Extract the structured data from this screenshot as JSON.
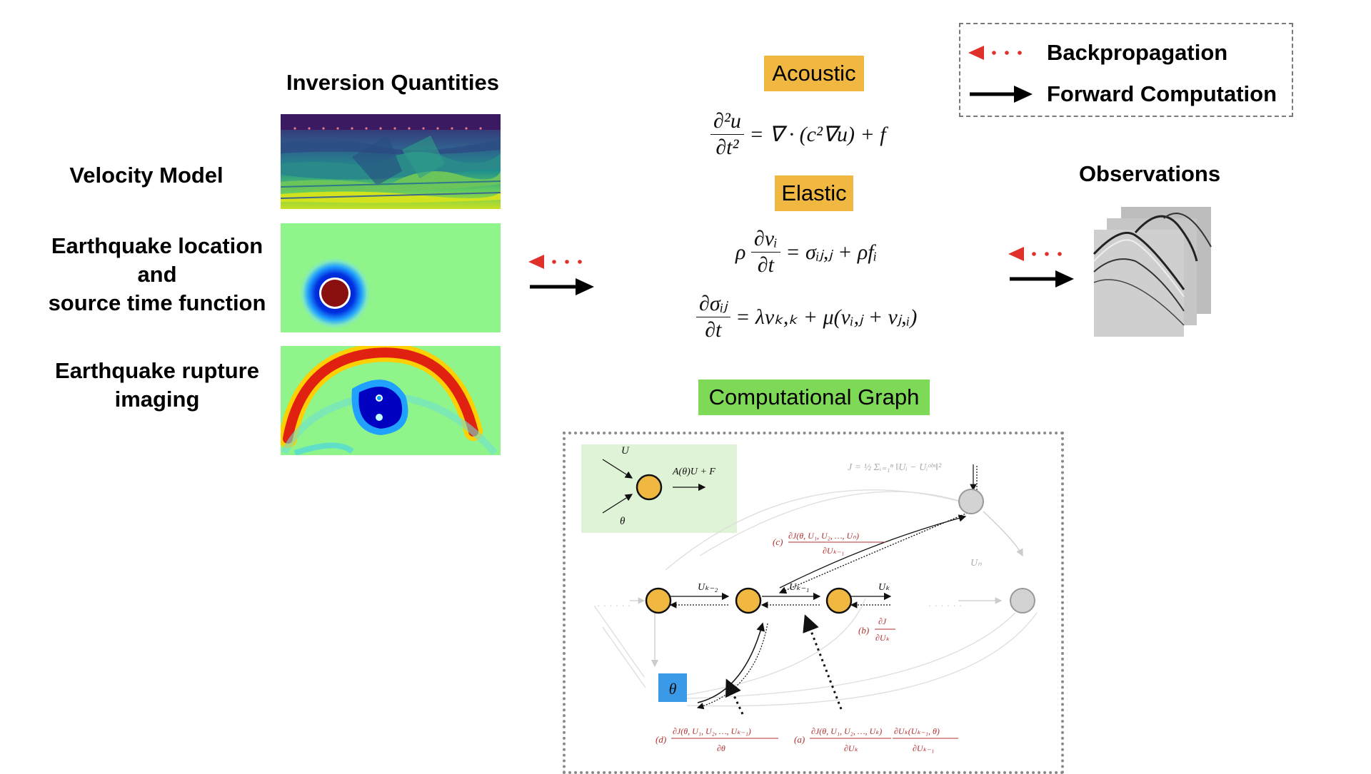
{
  "inversion": {
    "title": "Inversion Quantities",
    "rows": [
      {
        "label": "Velocity Model"
      },
      {
        "label_lines": [
          "Earthquake location",
          "and",
          "source time function"
        ]
      },
      {
        "label_lines": [
          "Earthquake rupture",
          "imaging"
        ]
      }
    ]
  },
  "equations": {
    "acoustic_tag": "Acoustic",
    "elastic_tag": "Elastic",
    "acoustic_eq": {
      "num": "∂²u",
      "den": "∂t²",
      "rest": "= ∇ · (c²∇u) + f"
    },
    "elastic_eq1": {
      "prefix": "ρ",
      "num": "∂vᵢ",
      "den": "∂t",
      "rest": "= σᵢⱼ,ⱼ + ρfᵢ"
    },
    "elastic_eq2": {
      "num": "∂σᵢⱼ",
      "den": "∂t",
      "rest": "= λvₖ,ₖ + μ(vᵢ,ⱼ + vⱼ,ᵢ)"
    }
  },
  "observations": {
    "title": "Observations"
  },
  "legend": {
    "backprop_label": "Backpropagation",
    "forward_label": "Forward Computation"
  },
  "graph": {
    "title": "Computational Graph",
    "inset_U": "U",
    "inset_theta": "θ",
    "inset_op": "A(θ)U + F",
    "loss": "J = ½ Σᵢ₌₁ⁿ ‖Uᵢ − Uᵢᵒᵇˢ‖²",
    "edge_uk2": "Uₖ₋₂",
    "edge_uk1": "Uₖ₋₁",
    "edge_uk": "Uₖ",
    "edge_un": "Uₙ",
    "node_theta": "θ",
    "label_c": "(c)",
    "c_num": "∂J(θ, U₁, U₂, …, Uₙ)",
    "c_den": "∂Uₖ₋₁",
    "label_b": "(b)",
    "b_num": "∂J",
    "b_den": "∂Uₖ",
    "label_d": "(d)",
    "d_num": "∂J(θ, U₁, U₂, …, Uₖ₋₁)",
    "d_den": "∂θ",
    "label_a": "(a)",
    "a_num1": "∂J(θ, U₁, U₂, …, Uₖ)",
    "a_den1": "∂Uₖ",
    "a_num2": "∂Uₖ(Uₖ₋₁, θ)",
    "a_den2": "∂Uₖ₋₁"
  },
  "colors": {
    "tag_orange": "#f0b840",
    "tag_green": "#7ed957",
    "node_orange": "#f0b840",
    "node_gray": "#d3d3d3",
    "theta_blue": "#3a9ae8",
    "backprop_red": "#e0302a",
    "formula_red": "#b03030",
    "inset_green": "#dff3d6",
    "panel_green": "#8ff58a"
  }
}
